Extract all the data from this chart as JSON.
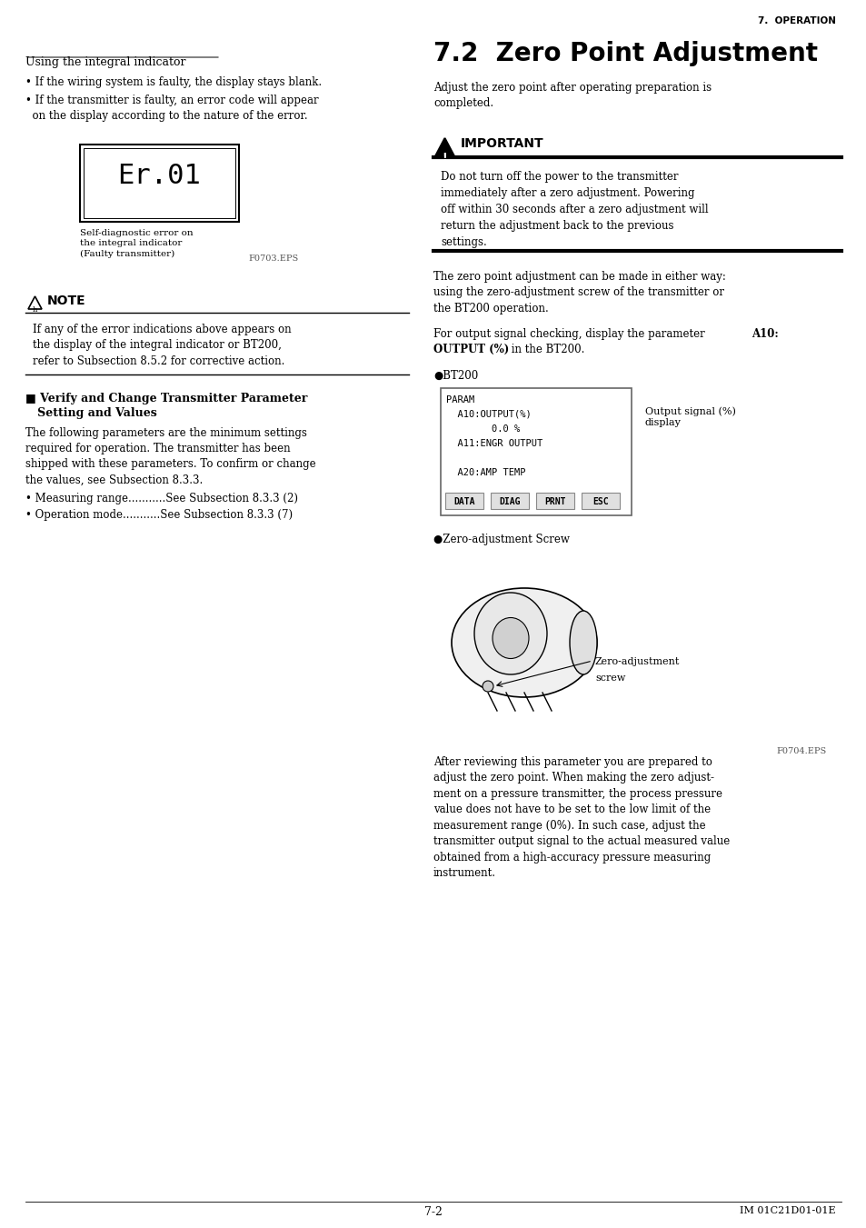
{
  "page_header_right": "7.  OPERATION",
  "bg_color": "#ffffff",
  "text_color": "#000000",
  "section_title": "7.2  Zero Point Adjustment",
  "section_intro": "Adjust the zero point after operating preparation is\ncompleted.",
  "important_label": "IMPORTANT",
  "important_text": "Do not turn off the power to the transmitter\nimmediately after a zero adjustment. Powering\noff within 30 seconds after a zero adjustment will\nreturn the adjustment back to the previous\nsettings.",
  "left_heading": "Using the integral indicator",
  "bullet1": "• If the wiring system is faulty, the display stays blank.",
  "bullet2": "• If the transmitter is faulty, an error code will appear\n  on the display according to the nature of the error.",
  "display_label": "Self-diagnostic error on\nthe integral indicator\n(Faulty transmitter)",
  "display_filename": "F0703.EPS",
  "note_label": "NOTE",
  "note_text": "If any of the error indications above appears on\nthe display of the integral indicator or BT200,\nrefer to Subsection 8.5.2 for corrective action.",
  "verify_heading1": "■ Verify and Change Transmitter Parameter",
  "verify_heading2": "   Setting and Values",
  "verify_para": "The following parameters are the minimum settings\nrequired for operation. The transmitter has been\nshipped with these parameters. To confirm or change\nthe values, see Subsection 8.3.3.",
  "bullet_meas": "• Measuring range...........See Subsection 8.3.3 (2)",
  "bullet_oper": "• Operation mode...........See Subsection 8.3.3 (7)",
  "zero_adj_para1": "The zero point adjustment can be made in either way:\nusing the zero-adjustment screw of the transmitter or\nthe BT200 operation.",
  "bt200_label": "●BT200",
  "bt200_display_lines": [
    "PARAM",
    "  A10:OUTPUT(%)",
    "        0.0 %",
    "  A11:ENGR OUTPUT",
    "",
    "  A20:AMP TEMP"
  ],
  "bt200_buttons": [
    "DATA",
    "DIAG",
    "PRNT",
    "ESC"
  ],
  "output_signal_label": "Output signal (%)\ndisplay",
  "zero_screw_label": "●Zero-adjustment Screw",
  "zero_screw_caption1": "Zero-adjustment",
  "zero_screw_caption2": "screw",
  "zero_screw_filename": "F0704.EPS",
  "after_para": "After reviewing this parameter you are prepared to\nadjust the zero point. When making the zero adjust-\nment on a pressure transmitter, the process pressure\nvalue does not have to be set to the low limit of the\nmeasurement range (0%). In such case, adjust the\ntransmitter output signal to the actual measured value\nobtained from a high-accuracy pressure measuring\ninstrument.",
  "page_num": "7-2",
  "page_code": "IM 01C21D01-01E"
}
